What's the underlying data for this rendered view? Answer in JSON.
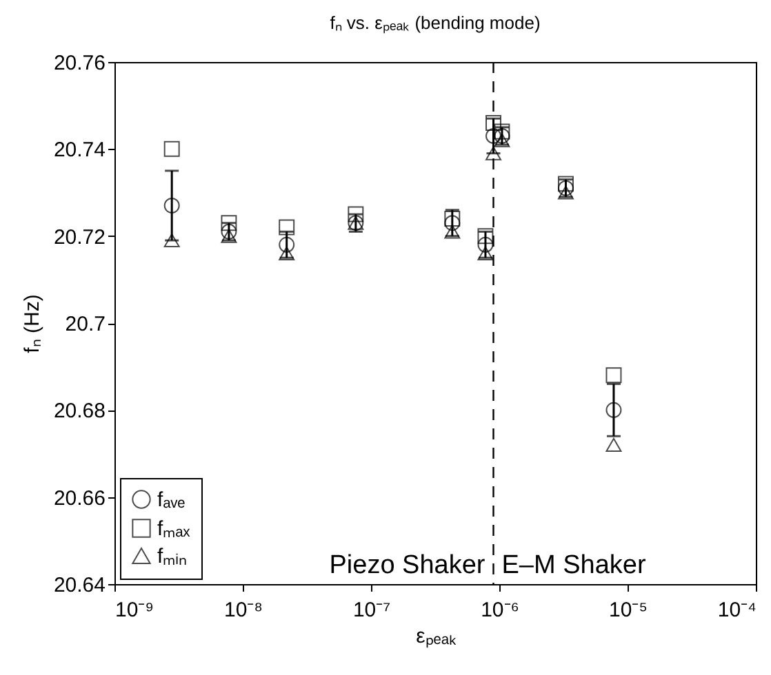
{
  "chart_data": {
    "type": "scatter",
    "title": "fₙ vs. εₚₑₐₖ (bending mode)",
    "xlabel": "εₚₑₐₖ",
    "ylabel": "fₙ (Hz)",
    "log": "x",
    "xlim": [
      1e-09,
      0.0001
    ],
    "xticks": [
      {
        "value": 1e-09,
        "label": "10⁻⁹"
      },
      {
        "value": 1e-08,
        "label": "10⁻⁸"
      },
      {
        "value": 1e-07,
        "label": "10⁻⁷"
      },
      {
        "value": 1e-06,
        "label": "10⁻⁶"
      },
      {
        "value": 1e-05,
        "label": "10⁻⁵"
      },
      {
        "value": 0.0001,
        "label": "10⁻⁴"
      }
    ],
    "ylim": [
      20.64,
      20.76
    ],
    "yticks": [
      20.64,
      20.66,
      {
        "value": 20.68,
        "label": "20.68"
      },
      {
        "value": 20.7,
        "label": "20.7"
      },
      20.72,
      20.74,
      20.76
    ],
    "x": [
      2.8e-09,
      7.8e-09,
      2.2e-08,
      7.6e-08,
      4.3e-07,
      7.8e-07,
      9e-07,
      1.05e-06,
      3.3e-06,
      7.8e-06
    ],
    "series": [
      {
        "name": "fₐᵥₑ",
        "color": "#000000",
        "marker": "circle",
        "values": [
          20.727,
          20.721,
          20.718,
          20.723,
          20.723,
          20.718,
          20.743,
          20.743,
          20.731,
          20.68
        ],
        "errors": [
          0.008,
          0.002,
          0.003,
          0.002,
          0.003,
          0.003,
          0.004,
          0.002,
          0.002,
          0.006
        ]
      },
      {
        "name": "fₘₐₓ",
        "color": "#000000",
        "marker": "square",
        "values": [
          20.74,
          20.723,
          20.722,
          20.725,
          20.724,
          20.72,
          20.746,
          20.744,
          20.732,
          20.688
        ]
      },
      {
        "name": "fₘᵢₙ",
        "color": "#000000",
        "marker": "triangle",
        "values": [
          20.719,
          20.72,
          20.716,
          20.723,
          20.721,
          20.716,
          20.739,
          20.742,
          20.73,
          20.672
        ]
      }
    ],
    "ref_lines": [
      {
        "axis": "x",
        "value": 9e-07,
        "line_style": "dashed",
        "color": "#000000"
      }
    ],
    "annotations": [
      "Piezo Shaker",
      "E–M Shaker"
    ],
    "legend": "bottom left",
    "grid": false
  }
}
